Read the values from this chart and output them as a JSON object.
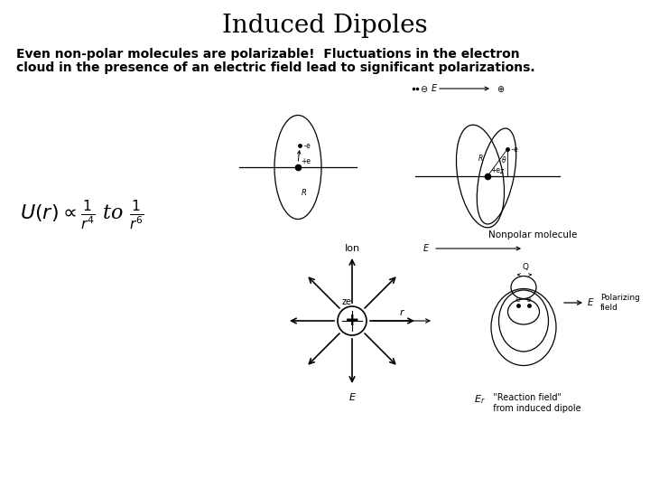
{
  "title": "Induced Dipoles",
  "title_fontsize": 20,
  "title_fontfamily": "serif",
  "body_text_line1": "Even non-polar molecules are polarizable!  Fluctuations in the electron",
  "body_text_line2": "cloud in the presence of an electric field lead to significant polarizations.",
  "body_fontsize": 10,
  "body_fontfamily": "sans-serif",
  "body_fontweight": "bold",
  "bg_color": "#ffffff",
  "text_color": "#000000",
  "fig_width": 7.2,
  "fig_height": 5.4,
  "dpi": 100
}
